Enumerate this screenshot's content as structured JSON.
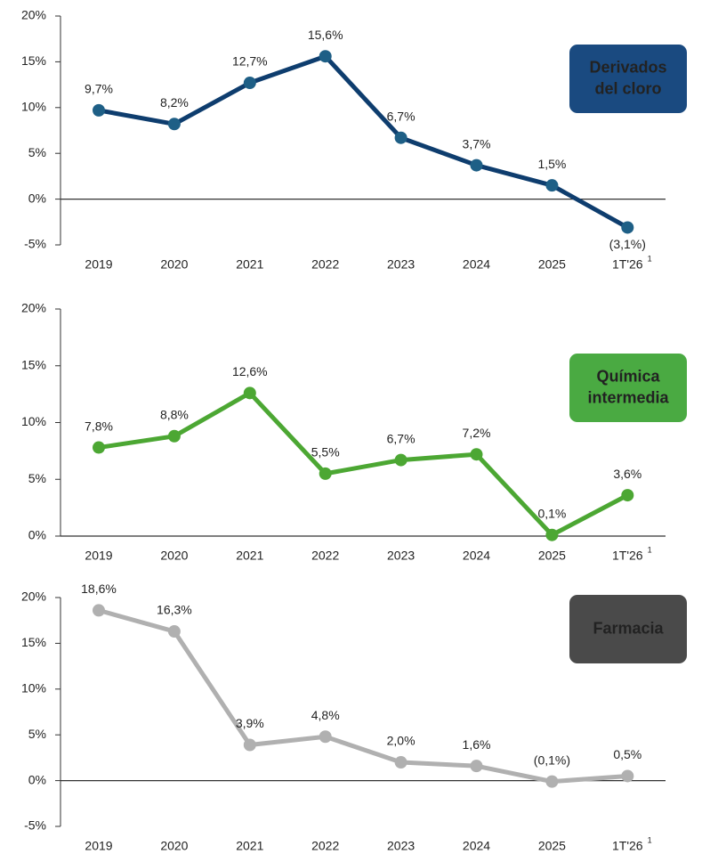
{
  "chart_data": [
    {
      "type": "line",
      "title_lines": [
        "Derivados",
        "del cloro"
      ],
      "badge_color": "#1a4a80",
      "categories": [
        "2019",
        "2020",
        "2021",
        "2022",
        "2023",
        "2024",
        "2025",
        "1T'26"
      ],
      "footnote_marker": "1",
      "values": [
        9.7,
        8.2,
        12.7,
        15.6,
        6.7,
        3.7,
        1.5,
        -3.1
      ],
      "value_labels": [
        "9,7%",
        "8,2%",
        "12,7%",
        "15,6%",
        "6,7%",
        "3,7%",
        "1,5%",
        "(3,1%)"
      ],
      "color": "#0e3d6e",
      "marker_color": "#1e5f86",
      "label_color": "#1e5a8a",
      "ylim": [
        -5,
        20
      ],
      "yticks": [
        {
          "value": -5,
          "label": "-5%"
        },
        {
          "value": 0,
          "label": "0%"
        },
        {
          "value": 5,
          "label": "5%"
        },
        {
          "value": 10,
          "label": "10%"
        },
        {
          "value": 15,
          "label": "15%"
        },
        {
          "value": 20,
          "label": "20%"
        }
      ]
    },
    {
      "type": "line",
      "title_lines": [
        "Química",
        "intermedia"
      ],
      "badge_color": "#4aaa42",
      "categories": [
        "2019",
        "2020",
        "2021",
        "2022",
        "2023",
        "2024",
        "2025",
        "1T'26"
      ],
      "footnote_marker": "1",
      "values": [
        7.8,
        8.8,
        12.6,
        5.5,
        6.7,
        7.2,
        0.1,
        3.6
      ],
      "value_labels": [
        "7,8%",
        "8,8%",
        "12,6%",
        "5,5%",
        "6,7%",
        "7,2%",
        "0,1%",
        "3,6%"
      ],
      "color": "#4ca733",
      "marker_color": "#4ca733",
      "label_color": "#4ca733",
      "ylim": [
        0,
        20
      ],
      "yticks": [
        {
          "value": 0,
          "label": "0%"
        },
        {
          "value": 5,
          "label": "5%"
        },
        {
          "value": 10,
          "label": "10%"
        },
        {
          "value": 15,
          "label": "15%"
        },
        {
          "value": 20,
          "label": "20%"
        }
      ]
    },
    {
      "type": "line",
      "title_lines": [
        "Farmacia"
      ],
      "badge_color": "#4a4a4a",
      "categories": [
        "2019",
        "2020",
        "2021",
        "2022",
        "2023",
        "2024",
        "2025",
        "1T'26"
      ],
      "footnote_marker": "1",
      "values": [
        18.6,
        16.3,
        3.9,
        4.8,
        2.0,
        1.6,
        -0.1,
        0.5
      ],
      "value_labels": [
        "18,6%",
        "16,3%",
        "3,9%",
        "4,8%",
        "2,0%",
        "1,6%",
        "(0,1%)",
        "0,5%"
      ],
      "color": "#b0b0b0",
      "marker_color": "#b0b0b0",
      "label_color": "#666666",
      "ylim": [
        -5,
        20
      ],
      "yticks": [
        {
          "value": -5,
          "label": "-5%"
        },
        {
          "value": 0,
          "label": "0%"
        },
        {
          "value": 5,
          "label": "5%"
        },
        {
          "value": 10,
          "label": "10%"
        },
        {
          "value": 15,
          "label": "15%"
        },
        {
          "value": 20,
          "label": "20%"
        }
      ]
    }
  ]
}
